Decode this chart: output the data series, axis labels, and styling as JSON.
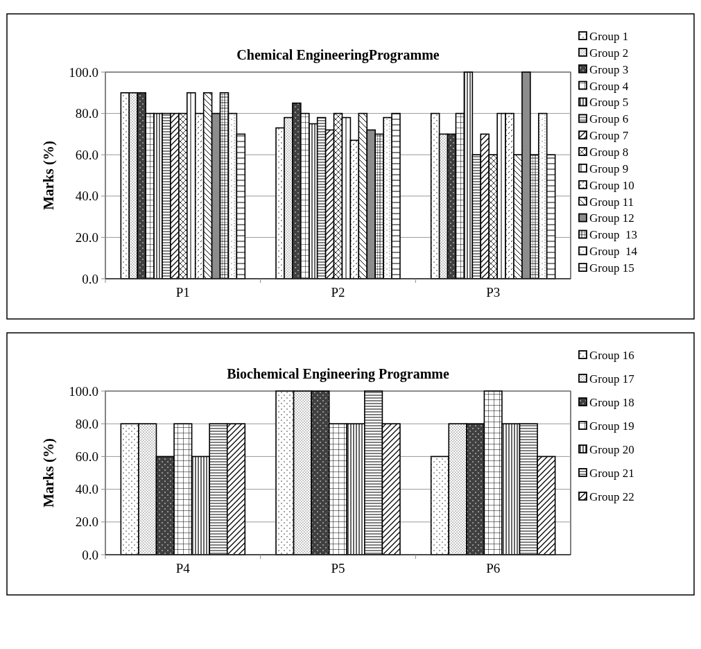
{
  "chart_data": [
    {
      "type": "bar",
      "title": "Chemical EngineeringProgramme",
      "ylabel": "Marks (%)",
      "categories": [
        "P1",
        "P2",
        "P3"
      ],
      "ylim": [
        0,
        100
      ],
      "yticks": [
        {
          "value": 0,
          "label": "0.0"
        },
        {
          "value": 20,
          "label": "20.0"
        },
        {
          "value": 40,
          "label": "40.0"
        },
        {
          "value": 60,
          "label": "60.0"
        },
        {
          "value": 80,
          "label": "80.0"
        },
        {
          "value": 100,
          "label": "100.0"
        }
      ],
      "grid": "y",
      "legend": "right",
      "series": [
        {
          "name": "Group 1",
          "color": "#000000",
          "values": [
            90,
            73,
            80
          ]
        },
        {
          "name": "Group 2",
          "color": "#000000",
          "values": [
            90,
            78,
            70
          ]
        },
        {
          "name": "Group 3",
          "color": "#000000",
          "values": [
            90,
            85,
            70
          ]
        },
        {
          "name": "Group 4",
          "color": "#000000",
          "values": [
            80,
            80,
            80
          ]
        },
        {
          "name": "Group 5",
          "color": "#000000",
          "values": [
            80,
            75,
            100
          ]
        },
        {
          "name": "Group 6",
          "color": "#000000",
          "values": [
            80,
            78,
            60
          ]
        },
        {
          "name": "Group 7",
          "color": "#000000",
          "values": [
            80,
            72,
            70
          ]
        },
        {
          "name": "Group 8",
          "color": "#000000",
          "values": [
            80,
            80,
            60
          ]
        },
        {
          "name": "Group 9",
          "color": "#000000",
          "values": [
            90,
            78,
            80
          ]
        },
        {
          "name": "Group 10",
          "color": "#000000",
          "values": [
            80,
            67,
            80
          ]
        },
        {
          "name": "Group 11",
          "color": "#000000",
          "values": [
            90,
            80,
            60
          ]
        },
        {
          "name": "Group 12",
          "color": "#000000",
          "values": [
            80,
            72,
            100
          ]
        },
        {
          "name": "Group  13",
          "color": "#000000",
          "values": [
            90,
            70,
            60
          ]
        },
        {
          "name": "Group  14",
          "color": "#000000",
          "values": [
            80,
            78,
            80
          ]
        },
        {
          "name": "Group 15",
          "color": "#000000",
          "values": [
            70,
            80,
            60
          ]
        }
      ]
    },
    {
      "type": "bar",
      "title": "Biochemical Engineering Programme",
      "ylabel": "Marks (%)",
      "categories": [
        "P4",
        "P5",
        "P6"
      ],
      "ylim": [
        0,
        100
      ],
      "yticks": [
        {
          "value": 0,
          "label": "0.0"
        },
        {
          "value": 20,
          "label": "20.0"
        },
        {
          "value": 40,
          "label": "40.0"
        },
        {
          "value": 60,
          "label": "60.0"
        },
        {
          "value": 80,
          "label": "80.0"
        },
        {
          "value": 100,
          "label": "100.0"
        }
      ],
      "grid": "y",
      "legend": "right",
      "series": [
        {
          "name": "Group 16",
          "color": "#000000",
          "values": [
            80,
            100,
            60
          ]
        },
        {
          "name": "Group 17",
          "color": "#000000",
          "values": [
            80,
            100,
            80
          ]
        },
        {
          "name": "Group 18",
          "color": "#000000",
          "values": [
            60,
            100,
            80
          ]
        },
        {
          "name": "Group 19",
          "color": "#000000",
          "values": [
            80,
            80,
            100
          ]
        },
        {
          "name": "Group 20",
          "color": "#000000",
          "values": [
            60,
            80,
            80
          ]
        },
        {
          "name": "Group 21",
          "color": "#000000",
          "values": [
            80,
            100,
            80
          ]
        },
        {
          "name": "Group 22",
          "color": "#000000",
          "values": [
            80,
            80,
            60
          ]
        }
      ]
    }
  ]
}
